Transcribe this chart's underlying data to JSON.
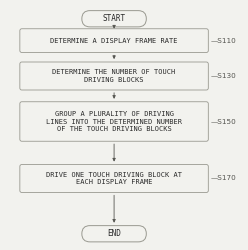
{
  "background_color": "#f2f2ee",
  "start_label": "START",
  "end_label": "END",
  "boxes": [
    {
      "text": "DETERMINE A DISPLAY FRAME RATE",
      "label": "S110",
      "lines": 1
    },
    {
      "text": "DETERMINE THE NUMBER OF TOUCH\nDRIVING BLOCKS",
      "label": "S130",
      "lines": 2
    },
    {
      "text": "GROUP A PLURALITY OF DRIVING\nLINES INTO THE DETERMINED NUMBER\nOF THE TOUCH DRIVING BLOCKS",
      "label": "S150",
      "lines": 3
    },
    {
      "text": "DRIVE ONE TOUCH DRIVING BLOCK AT\nEACH DISPLAY FRAME",
      "label": "S170",
      "lines": 2
    }
  ],
  "box_facecolor": "#f2f2ee",
  "box_edgecolor": "#999990",
  "text_color": "#2a2a2a",
  "label_color": "#555550",
  "arrow_color": "#555550",
  "font_size": 5.0,
  "label_font_size": 5.2,
  "pill_font_size": 5.5,
  "fig_w": 2.48,
  "fig_h": 2.5,
  "dpi": 100
}
